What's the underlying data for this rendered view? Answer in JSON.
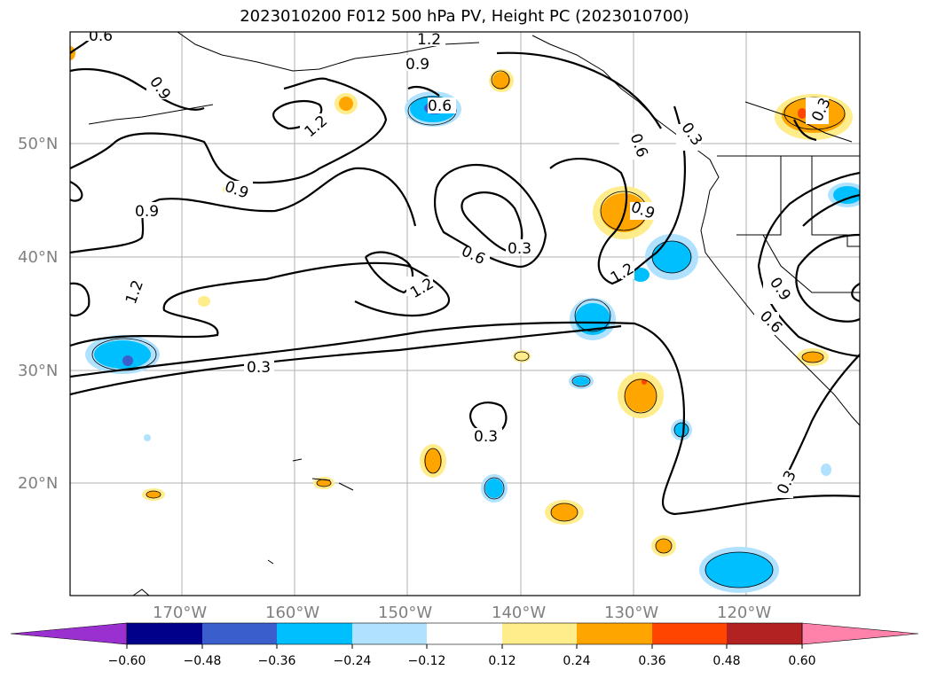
{
  "title": "2023010200 F012 500 hPa PV, Height PC (2023010700)",
  "lat_labels": [
    "50°N",
    "40°N",
    "30°N",
    "20°N"
  ],
  "lon_labels": [
    "170°W",
    "160°W",
    "150°W",
    "140°W",
    "130°W",
    "120°W"
  ],
  "contour_labels": [
    "0.6",
    "1.2",
    "0.9",
    "0.9",
    "1.2",
    "0.6",
    "0.9",
    "0.9",
    "0.3",
    "0.6",
    "0.3",
    "0.9",
    "1.2",
    "1.2",
    "0.6",
    "0.3",
    "0.3",
    "1.2",
    "0.9",
    "0.6",
    "0.3",
    "0.3"
  ],
  "colorbar": {
    "ticks": [
      "−0.60",
      "−0.48",
      "−0.36",
      "−0.24",
      "−0.12",
      "0.12",
      "0.24",
      "0.36",
      "0.48",
      "0.60"
    ],
    "colors": [
      "#9b30d0",
      "#00008b",
      "#3a5fcd",
      "#00bfff",
      "#b0e2ff",
      "#ffffff",
      "#ffec8b",
      "#ffa500",
      "#ff4500",
      "#b22222",
      "#ff82ab"
    ]
  }
}
